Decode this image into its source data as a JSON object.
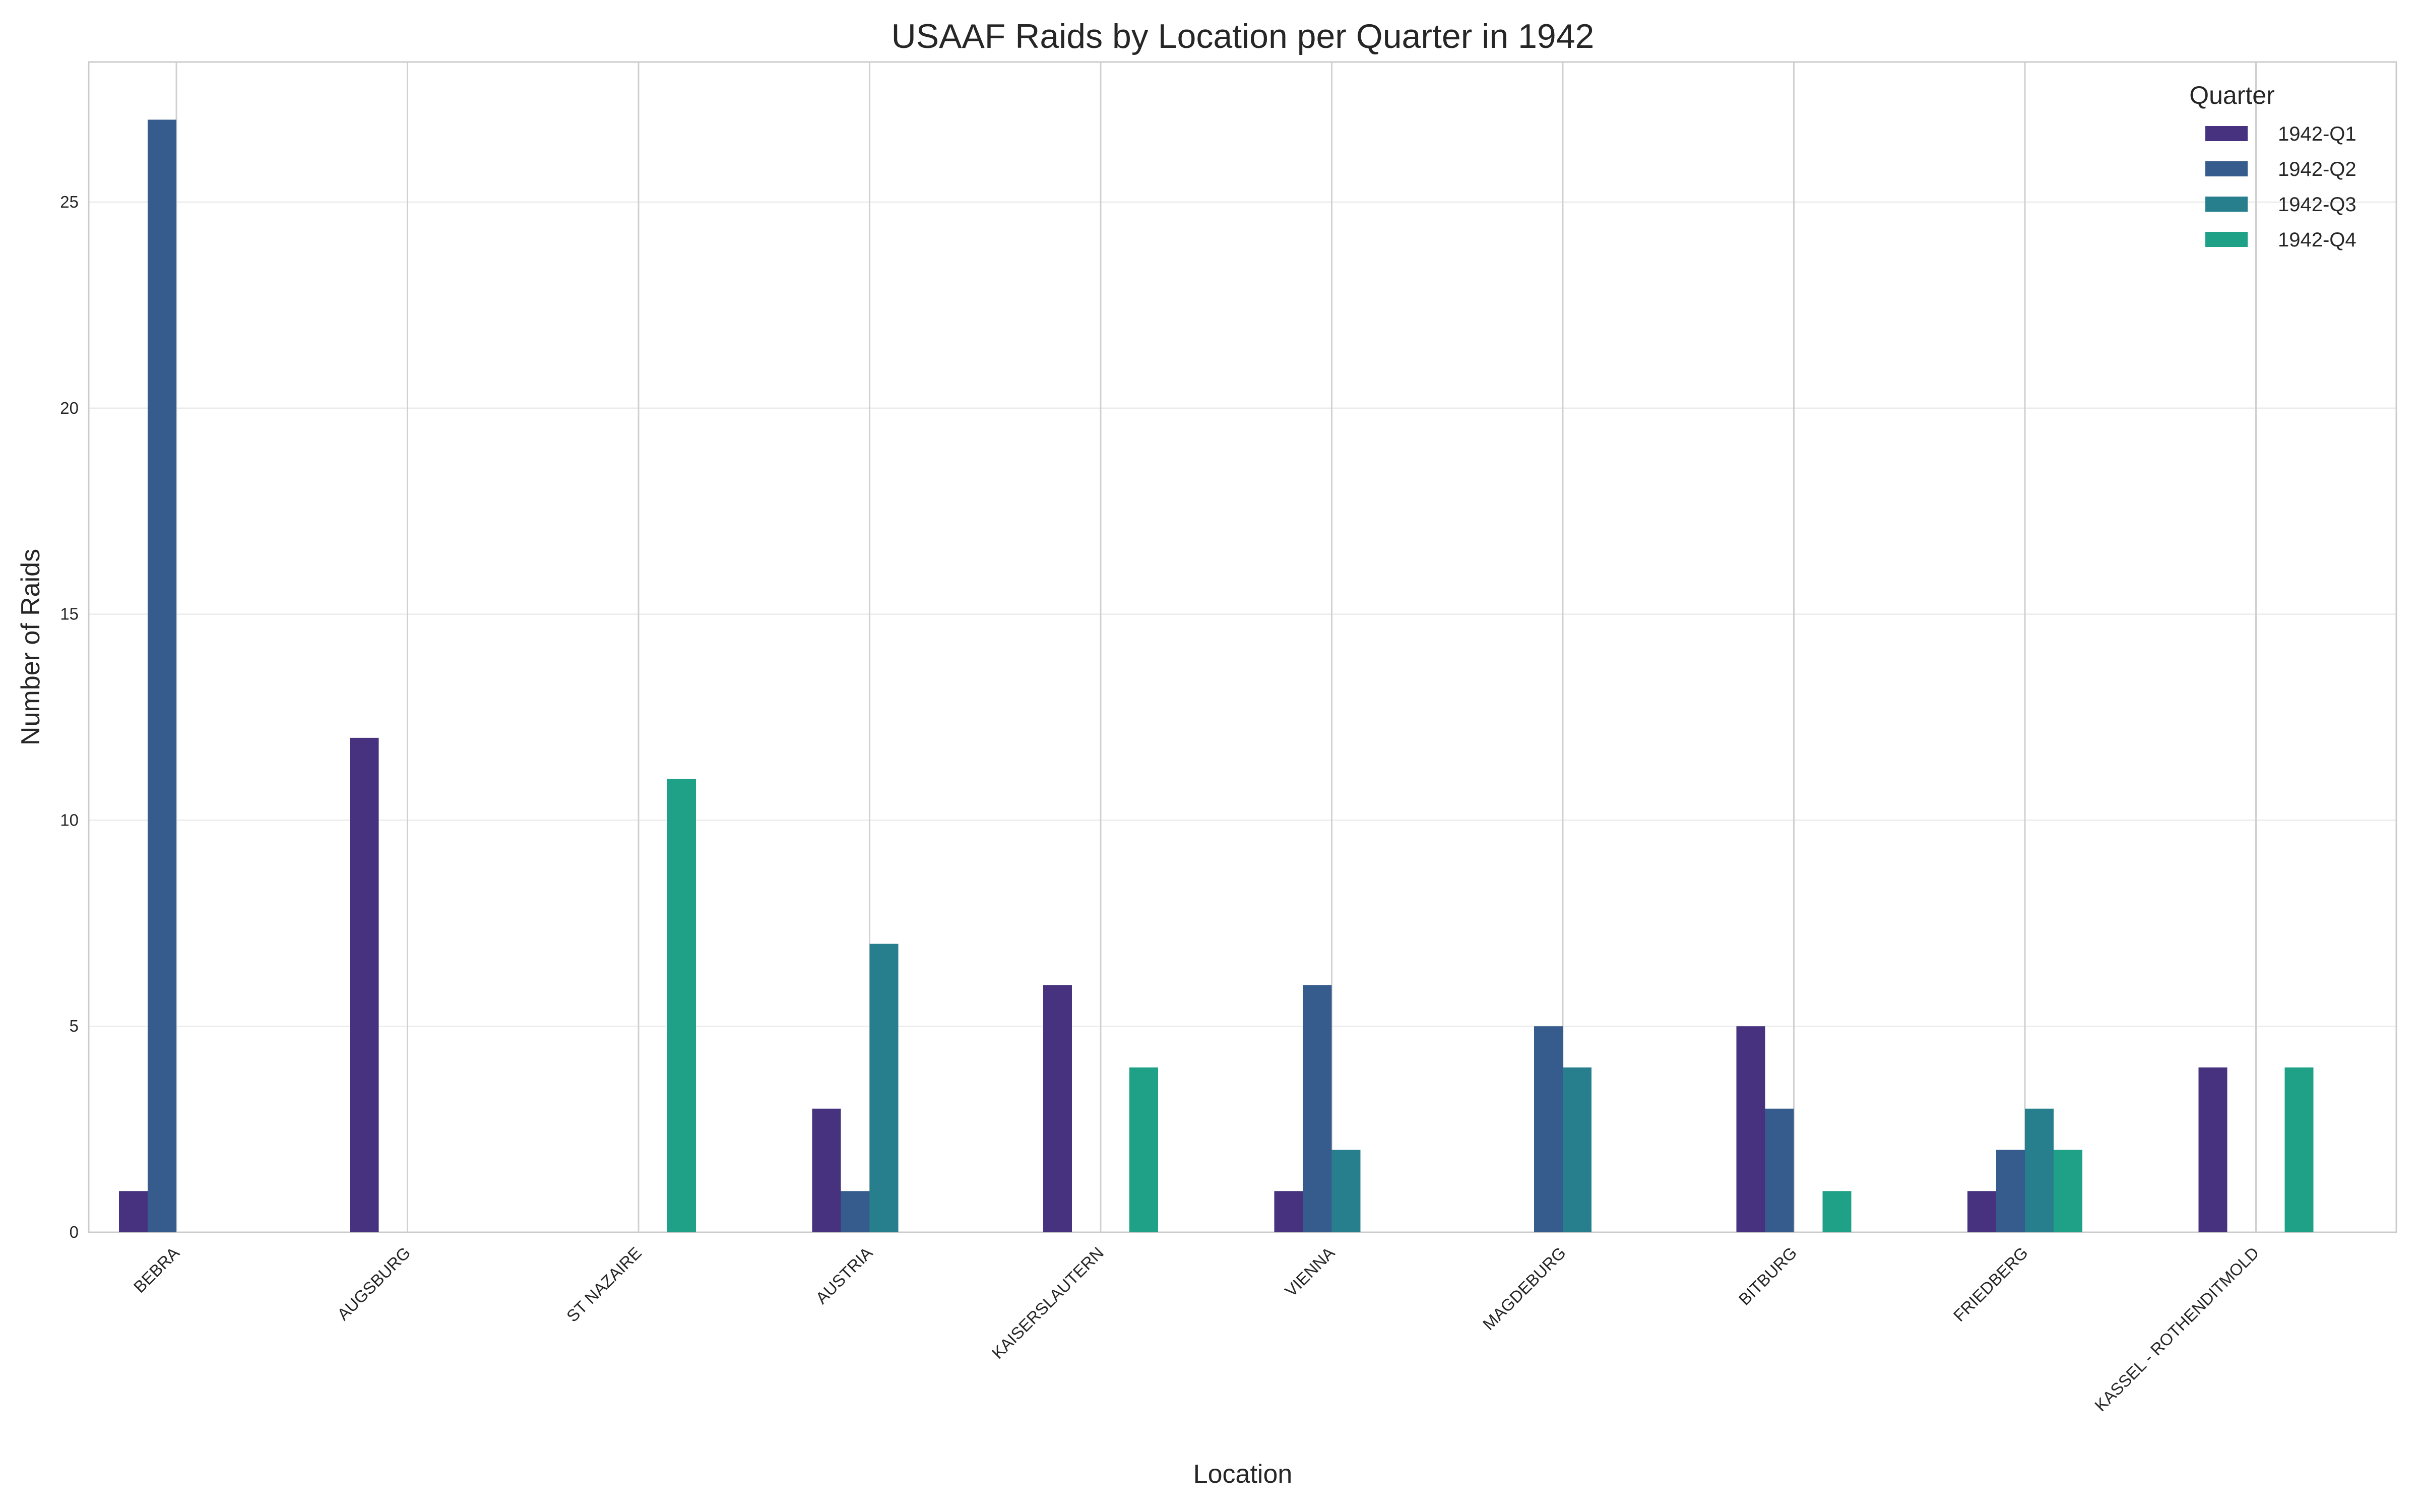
{
  "chart_data": {
    "type": "bar",
    "title": "USAAF Raids by Location per Quarter in 1942",
    "xlabel": "Location",
    "ylabel": "Number of Raids",
    "ylim": [
      0,
      28.4
    ],
    "yticks": [
      0,
      5,
      10,
      15,
      20,
      25
    ],
    "grid": true,
    "legend": {
      "title": "Quarter",
      "position": "top-right"
    },
    "categories": [
      "BEBRA",
      "AUGSBURG",
      "ST NAZAIRE",
      "AUSTRIA",
      "KAISERSLAUTERN",
      "VIENNA",
      "MAGDEBURG",
      "BITBURG",
      "FRIEDBERG",
      "KASSEL - ROTHENDITMOLD"
    ],
    "series": [
      {
        "name": "1942-Q1",
        "color": "#46327e",
        "values": [
          1,
          12,
          0,
          3,
          6,
          1,
          0,
          5,
          1,
          4
        ]
      },
      {
        "name": "1942-Q2",
        "color": "#365c8d",
        "values": [
          27,
          0,
          0,
          1,
          0,
          6,
          5,
          3,
          2,
          0
        ]
      },
      {
        "name": "1942-Q3",
        "color": "#277f8e",
        "values": [
          0,
          0,
          0,
          7,
          0,
          2,
          4,
          0,
          3,
          0
        ]
      },
      {
        "name": "1942-Q4",
        "color": "#1fa187",
        "values": [
          0,
          0,
          11,
          0,
          4,
          0,
          0,
          1,
          2,
          4
        ]
      }
    ]
  }
}
